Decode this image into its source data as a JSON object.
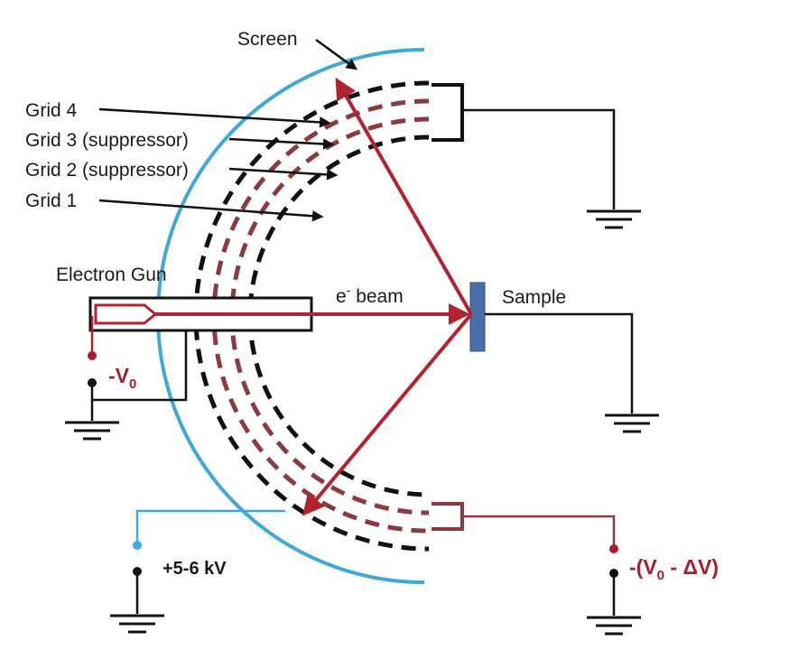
{
  "labels": {
    "screen": "Screen",
    "grid4": "Grid 4",
    "grid3": "Grid 3 (suppressor)",
    "grid2": "Grid 2 (suppressor)",
    "grid1": "Grid 1",
    "electron_gun": "Electron Gun",
    "beam_main": "e",
    "beam_sup": "-",
    "beam_tail": " beam",
    "sample": "Sample",
    "v0_prefix": "-V",
    "v0_sub": "0",
    "screen_voltage": "+5-6 kV",
    "suppressor_voltage_a": "-(V",
    "suppressor_voltage_sub": "0",
    "suppressor_voltage_b": " - ",
    "suppressor_voltage_delta": "ΔV",
    "suppressor_voltage_c": ")"
  },
  "colors": {
    "screen": "#3ea8d8",
    "beam": "#b3222f",
    "grid_outer": "#111111",
    "grid_suppressor": "#8c3a3f",
    "sample": "#4a6fa8",
    "wire": "#111111",
    "voltage_red": "#a61e2e"
  }
}
